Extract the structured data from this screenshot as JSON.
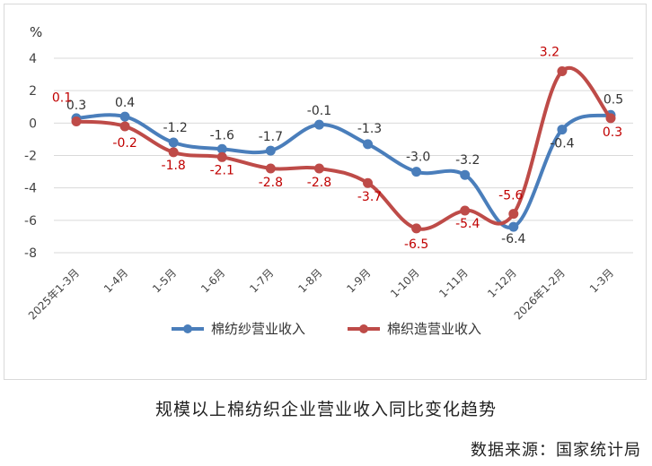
{
  "chart_data": {
    "type": "line",
    "ylabel": "%",
    "ylim": [
      -8,
      4
    ],
    "yticks": [
      4,
      2,
      0,
      -2,
      -4,
      -6,
      -8
    ],
    "categories": [
      "2025年1-3月",
      "1-4月",
      "1-5月",
      "1-6月",
      "1-7月",
      "1-8月",
      "1-9月",
      "1-10月",
      "1-11月",
      "1-12月",
      "2026年1-2月",
      "1-3月"
    ],
    "grid": true,
    "legend_position": "bottom",
    "series": [
      {
        "name": "棉纺纱营业收入",
        "color": "#4a7ebb",
        "values": [
          0.3,
          0.4,
          -1.2,
          -1.6,
          -1.7,
          -0.1,
          -1.3,
          -3.0,
          -3.2,
          -6.4,
          -0.4,
          0.5
        ],
        "labels": [
          "0.3",
          "0.4",
          "-1.2",
          "-1.6",
          "-1.7",
          "-0.1",
          "-1.3",
          "-3.0",
          "-3.2",
          "-6.4",
          "-0.4",
          "0.5"
        ]
      },
      {
        "name": "棉织造营业收入",
        "color": "#be4b48",
        "values": [
          0.1,
          -0.2,
          -1.8,
          -2.1,
          -2.8,
          -2.8,
          -3.7,
          -6.5,
          -5.4,
          -5.6,
          3.2,
          0.3
        ],
        "labels": [
          "0.1",
          "-0.2",
          "-1.8",
          "-2.1",
          "-2.8",
          "-2.8",
          "-3.7",
          "-6.5",
          "-5.4",
          "-5.6",
          "3.2",
          "0.3"
        ]
      }
    ]
  },
  "caption": "规模以上棉纺织企业营业收入同比变化趋势",
  "source": "数据来源：国家统计局"
}
